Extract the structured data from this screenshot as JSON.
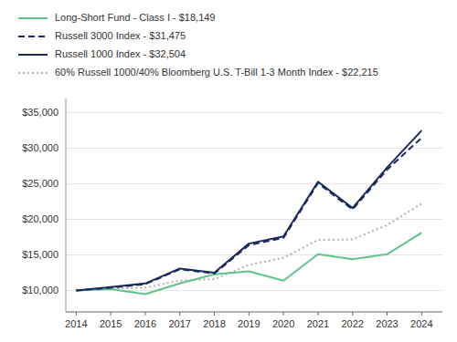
{
  "chart_data": {
    "type": "line",
    "x": [
      2014,
      2015,
      2016,
      2017,
      2018,
      2019,
      2020,
      2021,
      2022,
      2023,
      2024
    ],
    "xlim": [
      2013.7,
      2024.6
    ],
    "xticks": [
      2014,
      2015,
      2016,
      2017,
      2018,
      2019,
      2020,
      2021,
      2022,
      2023,
      2024
    ],
    "ylim": [
      7000,
      37000
    ],
    "yticks": [
      {
        "value": 10000,
        "label": "$10,000"
      },
      {
        "value": 15000,
        "label": "$15,000"
      },
      {
        "value": 20000,
        "label": "$20,000"
      },
      {
        "value": 25000,
        "label": "$25,000"
      },
      {
        "value": 30000,
        "label": "$30,000"
      },
      {
        "value": 35000,
        "label": "$35,000"
      }
    ],
    "grid": true,
    "legend": "top",
    "series": [
      {
        "name": "Long-Short Fund - Class I - $18,149",
        "color": "#5ec48a",
        "line_style": "solid",
        "values": [
          10000,
          10200,
          9500,
          11000,
          12300,
          12700,
          11400,
          15100,
          14400,
          15100,
          18149
        ]
      },
      {
        "name": "Russell 3000 Index - $31,475",
        "color": "#1a2a5e",
        "line_style": "dashed",
        "values": [
          10000,
          10400,
          10900,
          13000,
          12400,
          16400,
          17400,
          25100,
          21400,
          27000,
          31475
        ]
      },
      {
        "name": "Russell 1000 Index - $32,504",
        "color": "#1a2a5e",
        "line_style": "solid",
        "values": [
          10000,
          10500,
          11000,
          13100,
          12500,
          16600,
          17600,
          25300,
          21600,
          27300,
          32504
        ]
      },
      {
        "name": "60% Russell 1000/40% Bloomberg U.S. T-Bill 1-3 Month Index - $22,215",
        "color": "#b0b0b0",
        "line_style": "dotted",
        "values": [
          10000,
          10300,
          10400,
          11400,
          11600,
          13600,
          14600,
          17100,
          17200,
          19200,
          22215
        ]
      }
    ]
  }
}
